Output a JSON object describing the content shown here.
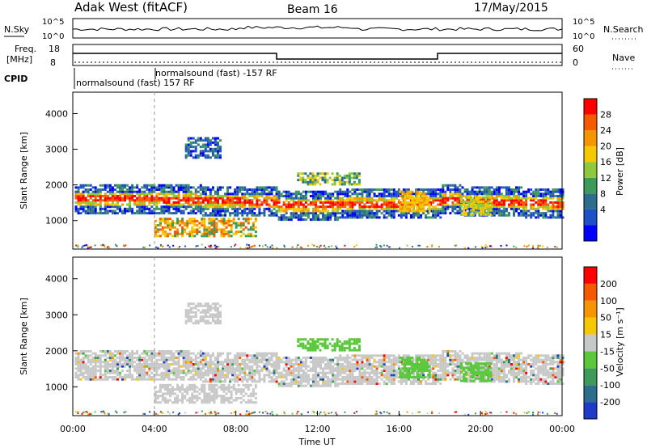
{
  "header": {
    "station": "Adak West (fitACF)",
    "beam": "Beam 16",
    "date": "17/May/2015"
  },
  "noise_panel": {
    "left_label": "N.Sky",
    "right_label": "N.Search",
    "left_ticks": [
      "10^5",
      "10^0"
    ],
    "right_ticks": [
      "10^5",
      "10^0"
    ]
  },
  "freq_panel": {
    "left_label_1": "Freq.",
    "left_label_2": "[MHz]",
    "right_label": "Nave",
    "left_ticks": [
      "18",
      "8"
    ],
    "right_ticks": [
      "60",
      "0"
    ]
  },
  "cpid": {
    "label": "CPID",
    "segments": [
      "normalsound (fast) 157 RF",
      "normalsound (fast) -157 RF"
    ]
  },
  "range_panels": {
    "ylabel": "Slant Range [km]",
    "yticks": [
      "4000",
      "3000",
      "2000",
      "1000"
    ]
  },
  "time_axis": {
    "xlabel": "Time UT",
    "xticks": [
      "00:00",
      "04:00",
      "08:00",
      "12:00",
      "16:00",
      "20:00",
      "00:00"
    ]
  },
  "power_bar": {
    "label": "Power [dB]",
    "ticks": [
      "28",
      "24",
      "20",
      "16",
      "12",
      "8",
      "4"
    ],
    "colors": [
      "#0000ff",
      "#1e50c8",
      "#2e6e8c",
      "#3c9a5a",
      "#8fc83c",
      "#f5c800",
      "#f59600",
      "#f55a00",
      "#ff0000"
    ]
  },
  "velocity_bar": {
    "label": "Velocity [m s⁻¹]",
    "ticks": [
      "200",
      "100",
      "50",
      "15",
      "-15",
      "-50",
      "-100",
      "-200"
    ],
    "colors": [
      "#1e3cc8",
      "#2e6e8c",
      "#3c9a5a",
      "#5ac83c",
      "#c8c8c8",
      "#f5c800",
      "#f59600",
      "#f55a00",
      "#ff0000"
    ]
  },
  "chart_data": [
    {
      "type": "heatmap",
      "title": "Power",
      "xlabel": "Time UT",
      "ylabel": "Slant Range [km]",
      "xlim": [
        0,
        24
      ],
      "ylim": [
        200,
        4600
      ],
      "bands": [
        {
          "t0": 0,
          "t1": 10,
          "r0": 1500,
          "r1": 1900,
          "level": "mid"
        },
        {
          "t0": 3,
          "t1": 9,
          "r0": 1200,
          "r1": 1700,
          "level": "high"
        },
        {
          "t0": 10,
          "t1": 18,
          "r0": 1300,
          "r1": 1750,
          "level": "high"
        },
        {
          "t0": 18,
          "t1": 22,
          "r0": 1400,
          "r1": 1850,
          "level": "high"
        },
        {
          "t0": 11,
          "t1": 14,
          "r0": 2050,
          "r1": 2400,
          "level": "mid"
        },
        {
          "t0": 5.5,
          "t1": 7,
          "r0": 2800,
          "r1": 3300,
          "level": "low"
        }
      ]
    },
    {
      "type": "heatmap",
      "title": "Velocity",
      "xlabel": "Time UT",
      "ylabel": "Slant Range [km]",
      "xlim": [
        0,
        24
      ],
      "ylim": [
        200,
        4600
      ]
    }
  ]
}
